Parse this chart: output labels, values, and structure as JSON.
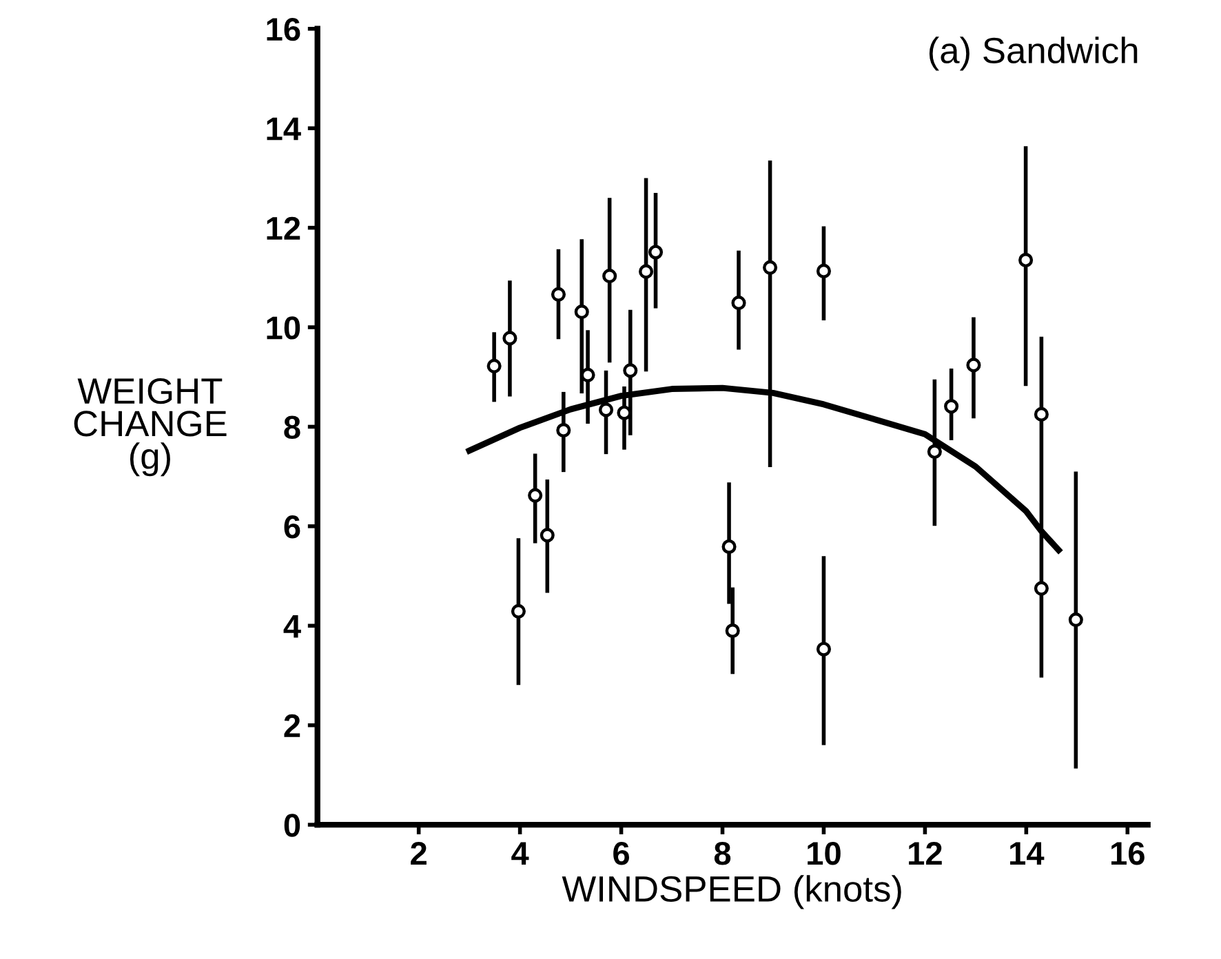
{
  "chart_data": {
    "type": "scatter",
    "xlabel": "WINDSPEED (knots)",
    "ylabel": "WEIGHT\nCHANGE\n(g)",
    "annotations": [
      "(a) Sandwich"
    ],
    "xlim": [
      0,
      16.4
    ],
    "xticks": [
      2,
      4,
      6,
      8,
      10,
      12,
      14,
      16
    ],
    "ylim": [
      0,
      16
    ],
    "yticks": [
      0,
      2,
      4,
      6,
      8,
      10,
      12,
      14,
      16
    ],
    "grid": false,
    "legend": false,
    "series": [
      {
        "color": "#000000",
        "marker": "circle",
        "x": [
          3.49,
          3.8,
          3.97,
          4.3,
          4.54,
          4.76,
          4.86,
          5.22,
          5.34,
          5.7,
          5.77,
          6.06,
          6.18,
          6.49,
          6.68,
          8.2,
          8.13,
          8.32,
          8.94,
          10.0,
          10.0,
          12.19,
          12.52,
          12.96,
          13.99,
          14.3,
          14.3,
          14.98
        ],
        "values": [
          9.22,
          9.78,
          4.29,
          6.62,
          5.82,
          10.66,
          7.93,
          10.31,
          9.04,
          8.34,
          11.03,
          8.28,
          9.13,
          11.12,
          11.51,
          3.9,
          5.59,
          10.49,
          11.2,
          11.13,
          3.53,
          7.5,
          8.41,
          9.24,
          11.35,
          8.25,
          4.75,
          4.12
        ],
        "errors": [
          [
            8.5,
            9.9
          ],
          [
            8.61,
            10.94
          ],
          [
            2.81,
            5.76
          ],
          [
            5.66,
            7.46
          ],
          [
            4.66,
            6.94
          ],
          [
            9.76,
            11.57
          ],
          [
            7.09,
            8.7
          ],
          [
            8.67,
            11.77
          ],
          [
            8.06,
            9.94
          ],
          [
            7.45,
            9.13
          ],
          [
            9.29,
            12.6
          ],
          [
            7.54,
            8.81
          ],
          [
            7.83,
            10.35
          ],
          [
            9.11,
            13.0
          ],
          [
            10.38,
            12.7
          ],
          [
            3.03,
            4.77
          ],
          [
            4.44,
            6.88
          ],
          [
            9.55,
            11.54
          ],
          [
            7.19,
            13.35
          ],
          [
            10.14,
            12.03
          ],
          [
            1.6,
            5.4
          ],
          [
            6.01,
            8.95
          ],
          [
            7.73,
            9.17
          ],
          [
            8.17,
            10.2
          ],
          [
            8.82,
            13.64
          ],
          [
            2.96,
            9.81
          ],
          null,
          [
            1.13,
            7.1
          ]
        ]
      },
      {
        "type": "line",
        "color": "#000000",
        "marker": "none",
        "line_style": "solid",
        "x": [
          3.0,
          4,
          5,
          6,
          7,
          8,
          9,
          10,
          11,
          12,
          13,
          14,
          14.3,
          14.64
        ],
        "values": [
          7.52,
          7.98,
          8.35,
          8.62,
          8.76,
          8.78,
          8.68,
          8.45,
          8.15,
          7.85,
          7.2,
          6.3,
          5.9,
          5.52
        ]
      }
    ]
  }
}
